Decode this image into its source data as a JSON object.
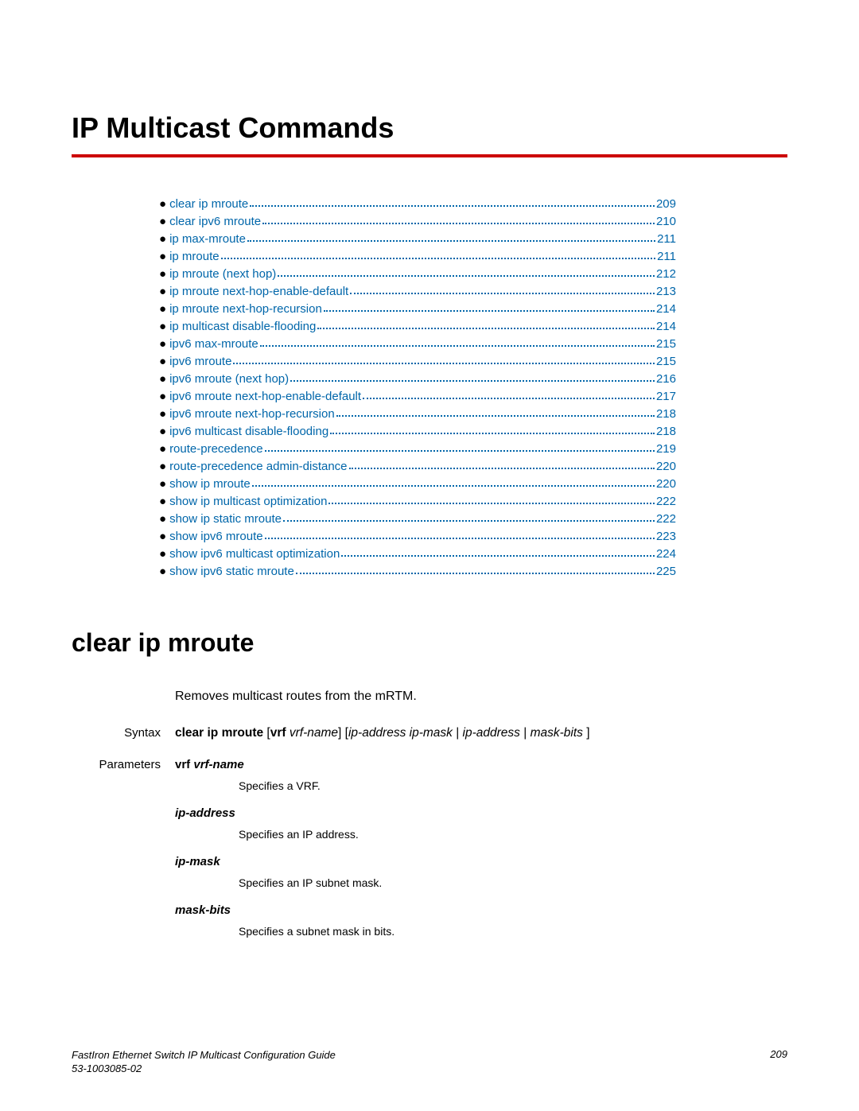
{
  "chapter_title": "IP Multicast Commands",
  "toc": [
    {
      "label": "clear ip mroute",
      "page": "209"
    },
    {
      "label": "clear ipv6 mroute",
      "page": "210"
    },
    {
      "label": "ip max-mroute",
      "page": "211"
    },
    {
      "label": "ip mroute",
      "page": "211"
    },
    {
      "label": "ip mroute (next hop)",
      "page": "212"
    },
    {
      "label": "ip mroute next-hop-enable-default",
      "page": "213"
    },
    {
      "label": "ip mroute next-hop-recursion",
      "page": "214"
    },
    {
      "label": "ip multicast disable-flooding",
      "page": "214"
    },
    {
      "label": "ipv6 max-mroute",
      "page": "215"
    },
    {
      "label": "ipv6 mroute",
      "page": "215"
    },
    {
      "label": "ipv6 mroute (next hop)",
      "page": "216"
    },
    {
      "label": "ipv6 mroute next-hop-enable-default",
      "page": "217"
    },
    {
      "label": "ipv6 mroute next-hop-recursion",
      "page": "218"
    },
    {
      "label": "ipv6 multicast disable-flooding",
      "page": "218"
    },
    {
      "label": "route-precedence",
      "page": "219"
    },
    {
      "label": "route-precedence admin-distance",
      "page": "220"
    },
    {
      "label": "show ip mroute",
      "page": "220"
    },
    {
      "label": "show ip multicast optimization ",
      "page": "222"
    },
    {
      "label": "show ip static mroute",
      "page": "222"
    },
    {
      "label": "show ipv6 mroute",
      "page": "223"
    },
    {
      "label": "show ipv6 multicast optimization ",
      "page": "224"
    },
    {
      "label": "show ipv6 static mroute",
      "page": "225"
    }
  ],
  "section": {
    "title": "clear ip mroute",
    "description": "Removes multicast routes from the mRTM.",
    "syntax_label": "Syntax",
    "syntax": {
      "cmd": "clear ip mroute",
      "rest_html": "[<b>vrf</b> <i>vrf-name</i>] [<i>ip-address ip-mask</i> | <i>ip-address</i> | <i>mask-bits</i> ]"
    },
    "params_label": "Parameters",
    "params": [
      {
        "name_html": "<span class='kw'>vrf</span> <i>vrf-name</i>",
        "desc": "Specifies a VRF."
      },
      {
        "name_html": "<i>ip-address</i>",
        "desc": "Specifies an IP address."
      },
      {
        "name_html": "<i>ip-mask</i>",
        "desc": "Specifies an IP subnet mask."
      },
      {
        "name_html": "<i>mask-bits</i>",
        "desc": "Specifies a subnet mask in bits."
      }
    ]
  },
  "footer": {
    "title": "FastIron Ethernet Switch IP Multicast Configuration Guide",
    "docnum": "53-1003085-02",
    "page": "209"
  },
  "colors": {
    "link": "#0066aa",
    "rule": "#cc0000"
  }
}
